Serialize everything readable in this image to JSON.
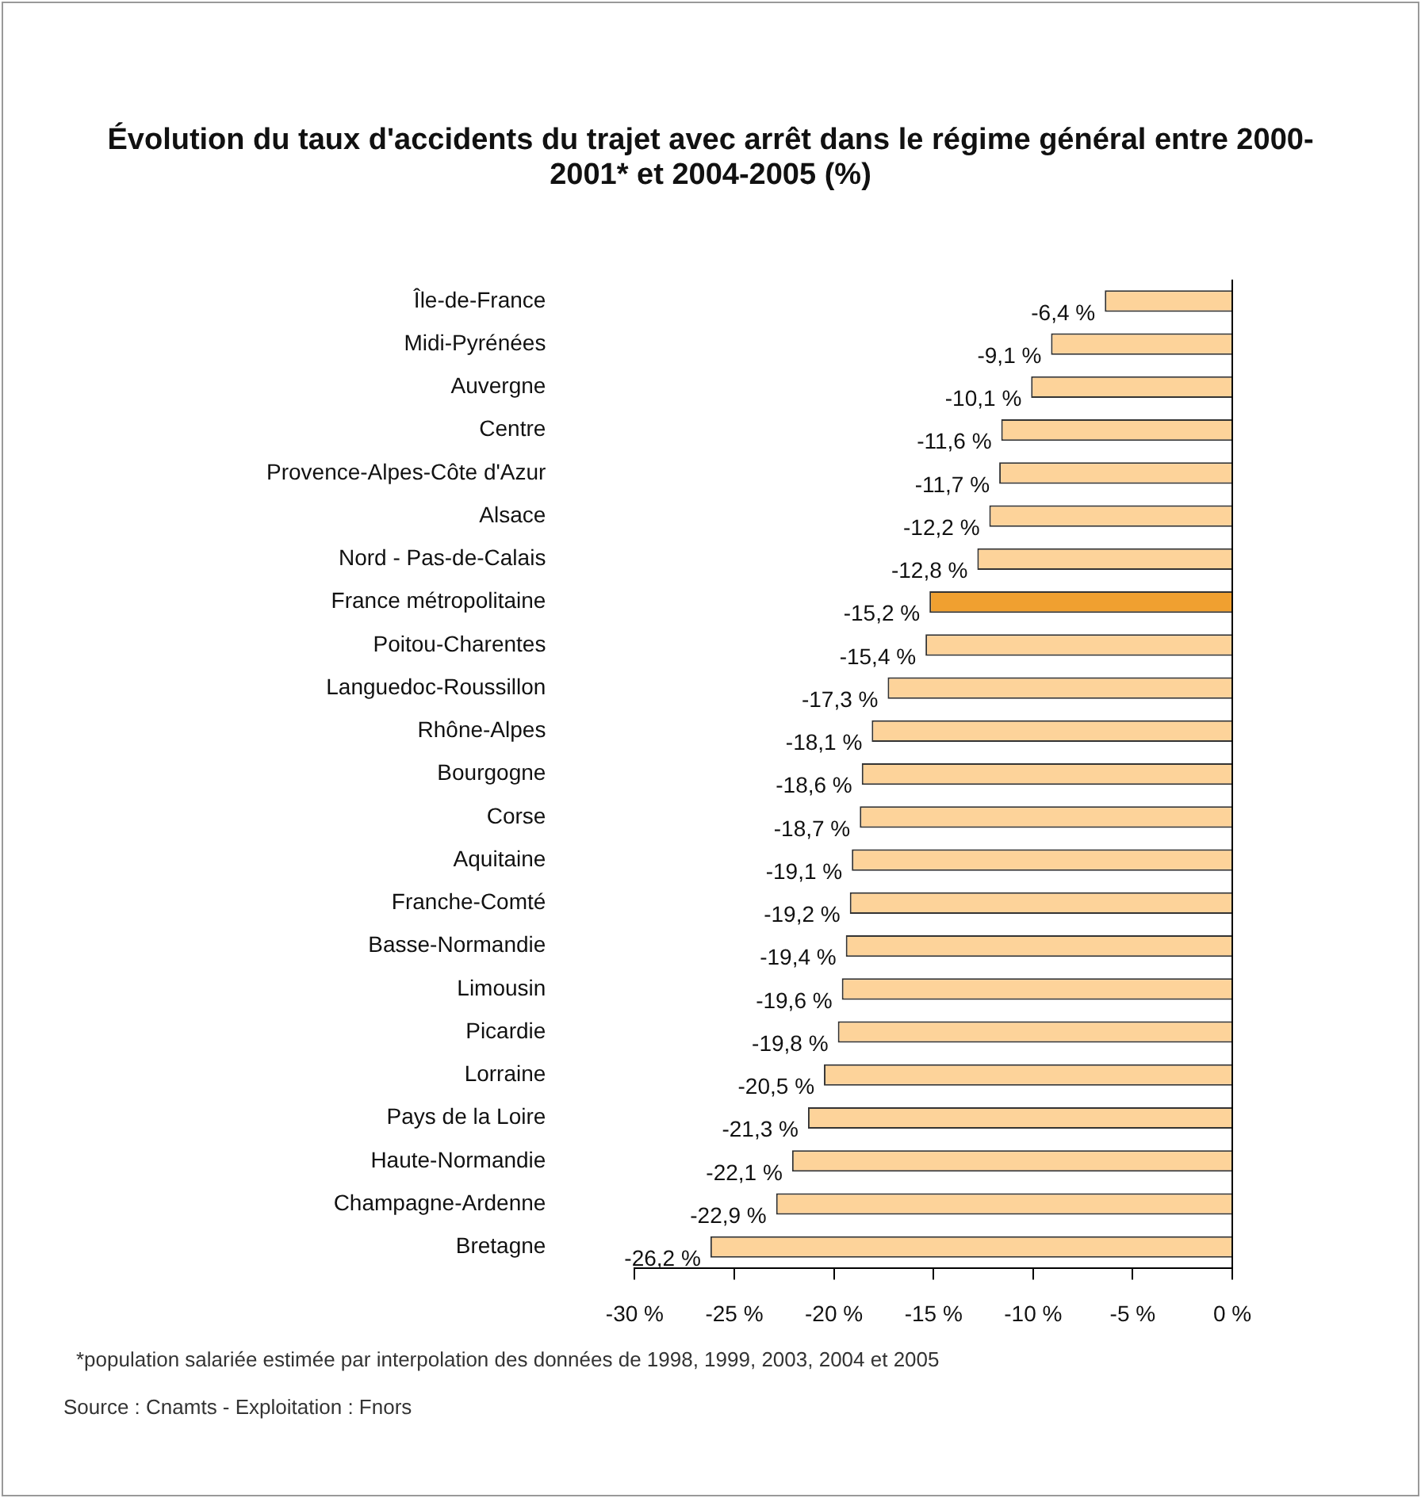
{
  "chart_data": {
    "type": "bar",
    "orientation": "horizontal",
    "title": "Évolution du taux d'accidents du trajet avec arrêt dans le régime général entre 2000-2001* et 2004-2005 (%)",
    "categories": [
      "Île-de-France",
      "Midi-Pyrénées",
      "Auvergne",
      "Centre",
      "Provence-Alpes-Côte d'Azur",
      "Alsace",
      "Nord - Pas-de-Calais",
      "France métropolitaine",
      "Poitou-Charentes",
      "Languedoc-Roussillon",
      "Rhône-Alpes",
      "Bourgogne",
      "Corse",
      "Aquitaine",
      "Franche-Comté",
      "Basse-Normandie",
      "Limousin",
      "Picardie",
      "Lorraine",
      "Pays de la Loire",
      "Haute-Normandie",
      "Champagne-Ardenne",
      "Bretagne"
    ],
    "values": [
      -6.4,
      -9.1,
      -10.1,
      -11.6,
      -11.7,
      -12.2,
      -12.8,
      -15.2,
      -15.4,
      -17.3,
      -18.1,
      -18.6,
      -18.7,
      -19.1,
      -19.2,
      -19.4,
      -19.6,
      -19.8,
      -20.5,
      -21.3,
      -22.1,
      -22.9,
      -26.2
    ],
    "value_labels": [
      "-6,4 %",
      "-9,1 %",
      "-10,1 %",
      "-11,6 %",
      "-11,7 %",
      "-12,2 %",
      "-12,8 %",
      "-15,2 %",
      "-15,4 %",
      "-17,3 %",
      "-18,1 %",
      "-18,6 %",
      "-18,7 %",
      "-19,1 %",
      "-19,2 %",
      "-19,4 %",
      "-19,6 %",
      "-19,8 %",
      "-20,5 %",
      "-21,3 %",
      "-22,1 %",
      "-22,9 %",
      "-26,2 %"
    ],
    "colors": [
      "#fdd39a",
      "#fdd39a",
      "#fdd39a",
      "#fdd39a",
      "#fdd39a",
      "#fdd39a",
      "#fdd39a",
      "#f0a030",
      "#fdd39a",
      "#fdd39a",
      "#fdd39a",
      "#fdd39a",
      "#fdd39a",
      "#fdd39a",
      "#fdd39a",
      "#fdd39a",
      "#fdd39a",
      "#fdd39a",
      "#fdd39a",
      "#fdd39a",
      "#fdd39a",
      "#fdd39a",
      "#fdd39a"
    ],
    "xlim": [
      -30,
      0
    ],
    "xticks": [
      {
        "value": -30,
        "label": "-30 %"
      },
      {
        "value": -25,
        "label": "-25 %"
      },
      {
        "value": -20,
        "label": "-20 %"
      },
      {
        "value": -15,
        "label": "-15 %"
      },
      {
        "value": -10,
        "label": "-10 %"
      },
      {
        "value": -5,
        "label": "-5 %"
      },
      {
        "value": 0,
        "label": "0 %"
      }
    ],
    "grid": false,
    "legend": false,
    "annotations": [
      "*population salariée estimée par interpolation des données de 1998, 1999, 2003, 2004 et 2005",
      "Source : Cnamts - Exploitation : Fnors"
    ]
  }
}
